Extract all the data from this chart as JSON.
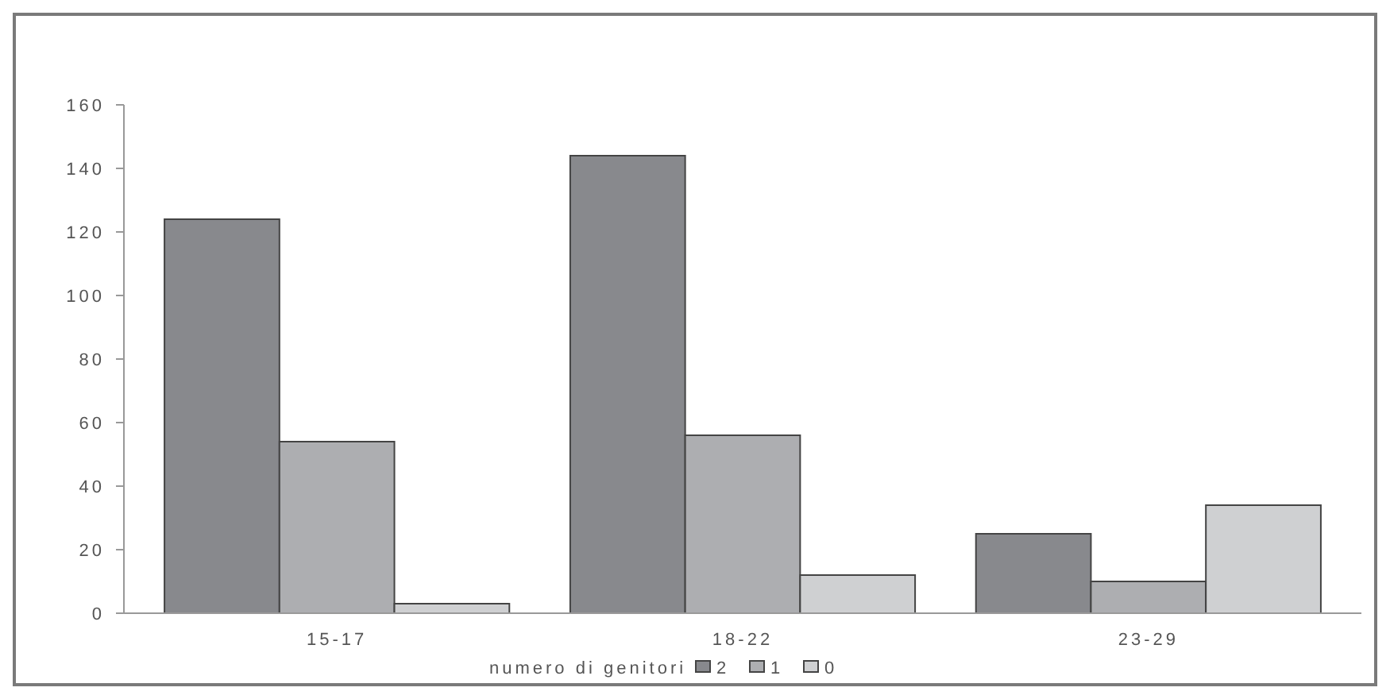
{
  "chart_data": {
    "type": "bar",
    "categories": [
      "15-17",
      "18-22",
      "23-29"
    ],
    "series": [
      {
        "name": "2",
        "color": "#88898d",
        "values": [
          124,
          144,
          25
        ]
      },
      {
        "name": "1",
        "color": "#adaeb1",
        "values": [
          54,
          56,
          10
        ]
      },
      {
        "name": "0",
        "color": "#cfd0d2",
        "values": [
          3,
          12,
          34
        ]
      }
    ],
    "legend_title": "numero di genitori",
    "legend": "bottom",
    "grid": false,
    "ylim": [
      0,
      160
    ],
    "yticks": [
      0,
      20,
      40,
      60,
      80,
      100,
      120,
      140,
      160
    ]
  }
}
